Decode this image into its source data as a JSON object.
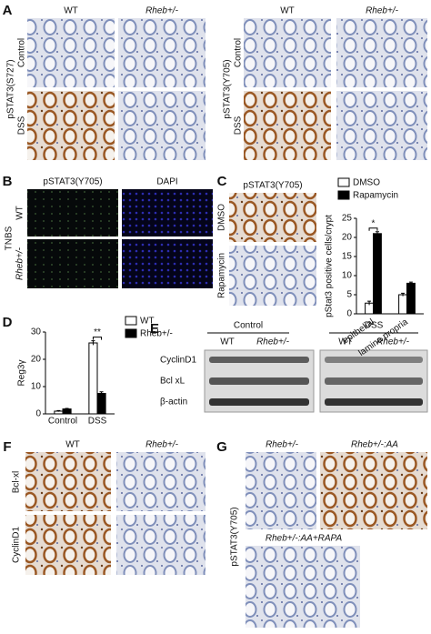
{
  "panels": {
    "a": {
      "label": "A",
      "left": {
        "columns": [
          "WT",
          "Rheb+/-"
        ],
        "y_label": "pSTAT3(S727)",
        "rows": [
          "Control",
          "DSS"
        ]
      },
      "right": {
        "columns": [
          "WT",
          "Rheb+/-"
        ],
        "y_label": "pSTAT3(Y705)",
        "rows": [
          "Control",
          "DSS"
        ]
      }
    },
    "b": {
      "label": "B",
      "columns": [
        "pSTAT3(Y705)",
        "DAPI"
      ],
      "group": "TNBS",
      "rows": [
        "WT",
        "Rheb+/-"
      ]
    },
    "c": {
      "label": "C",
      "title": "pSTAT3(Y705)",
      "rows": [
        "DMSO",
        "Rapamycin"
      ]
    },
    "d": {
      "label": "D"
    },
    "e": {
      "label": "E",
      "groups": [
        "Control",
        "DSS"
      ],
      "lanes": [
        "WT",
        "Rheb+/-",
        "WT",
        "Rheb+/-"
      ],
      "rows": [
        "CyclinD1",
        "Bcl xL",
        "β-actin"
      ]
    },
    "f": {
      "label": "F",
      "columns": [
        "WT",
        "Rheb+/-"
      ],
      "rows": [
        "Bcl-xl",
        "CyclinD1"
      ]
    },
    "g": {
      "label": "G",
      "y_label": "pSTAT3(Y705)",
      "images": [
        "Rheb+/-",
        "Rheb+/-:AA",
        "Rheb+/-:AA+RAPA"
      ]
    }
  },
  "chart_data": [
    {
      "type": "bar",
      "y_label": "pStat3 positive cells/crypt",
      "categories": [
        "epithelial",
        "lamina propria"
      ],
      "series": [
        {
          "name": "DMSO",
          "color": "#ffffff",
          "values": [
            2.8,
            5
          ],
          "errors": [
            0.5,
            0.4
          ]
        },
        {
          "name": "Rapamycin",
          "color": "#000000",
          "values": [
            21,
            8
          ],
          "errors": [
            0.5,
            0.3
          ]
        }
      ],
      "ylim": [
        0,
        25
      ],
      "yticks": [
        0,
        5,
        10,
        15,
        20,
        25
      ],
      "annotation": "*"
    },
    {
      "type": "bar",
      "y_label": "Reg3γ",
      "categories": [
        "Control",
        "DSS"
      ],
      "series": [
        {
          "name": "WT",
          "color": "#ffffff",
          "values": [
            1,
            26
          ],
          "errors": [
            0.2,
            0.8
          ]
        },
        {
          "name": "Rheb+/-",
          "color": "#000000",
          "values": [
            1.8,
            7.5
          ],
          "errors": [
            0.2,
            0.6
          ]
        }
      ],
      "ylim": [
        0,
        30
      ],
      "yticks": [
        0,
        10,
        20,
        30
      ],
      "annotation": "**"
    }
  ]
}
